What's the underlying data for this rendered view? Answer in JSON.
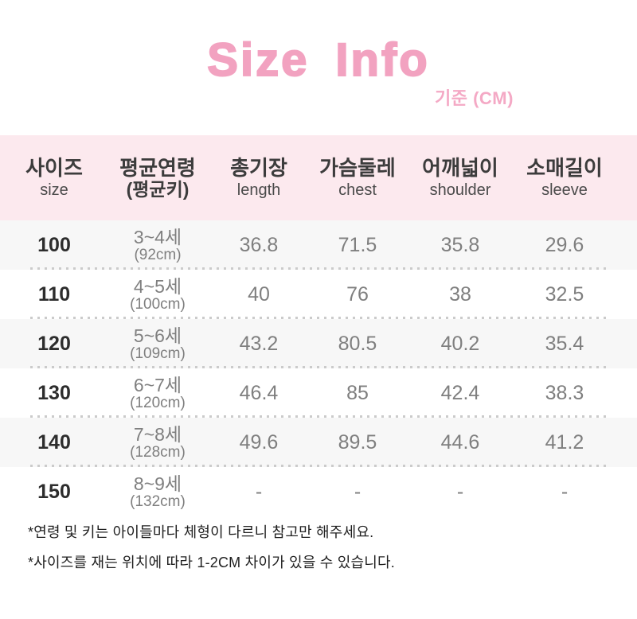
{
  "title": "Size Info",
  "unit_label": "기준 (CM)",
  "colors": {
    "title_pink": "#f2a2c0",
    "header_bg": "#fce9ee",
    "alt_row_bg": "#f7f7f7",
    "value_gray": "#7f7f7f",
    "text_dark": "#2d2d2d",
    "dot_gray": "#cbcbcb"
  },
  "table": {
    "columns": [
      {
        "main": "사이즈",
        "sub": "size"
      },
      {
        "main": "평균연령",
        "sub": "(평균키)"
      },
      {
        "main": "총기장",
        "sub": "length"
      },
      {
        "main": "가슴둘레",
        "sub": "chest"
      },
      {
        "main": "어깨넓이",
        "sub": "shoulder"
      },
      {
        "main": "소매길이",
        "sub": "sleeve"
      }
    ],
    "rows": [
      {
        "size": "100",
        "age": "3~4세",
        "height": "(92cm)",
        "length": "36.8",
        "chest": "71.5",
        "shoulder": "35.8",
        "sleeve": "29.6"
      },
      {
        "size": "110",
        "age": "4~5세",
        "height": "(100cm)",
        "length": "40",
        "chest": "76",
        "shoulder": "38",
        "sleeve": "32.5"
      },
      {
        "size": "120",
        "age": "5~6세",
        "height": "(109cm)",
        "length": "43.2",
        "chest": "80.5",
        "shoulder": "40.2",
        "sleeve": "35.4"
      },
      {
        "size": "130",
        "age": "6~7세",
        "height": "(120cm)",
        "length": "46.4",
        "chest": "85",
        "shoulder": "42.4",
        "sleeve": "38.3"
      },
      {
        "size": "140",
        "age": "7~8세",
        "height": "(128cm)",
        "length": "49.6",
        "chest": "89.5",
        "shoulder": "44.6",
        "sleeve": "41.2"
      },
      {
        "size": "150",
        "age": "8~9세",
        "height": "(132cm)",
        "length": "-",
        "chest": "-",
        "shoulder": "-",
        "sleeve": "-"
      }
    ]
  },
  "footnotes": {
    "line1": "*연령 및 키는 아이들마다 체형이 다르니 참고만 해주세요.",
    "line2": "*사이즈를 재는 위치에 따라 1-2CM 차이가 있을 수 있습니다."
  }
}
